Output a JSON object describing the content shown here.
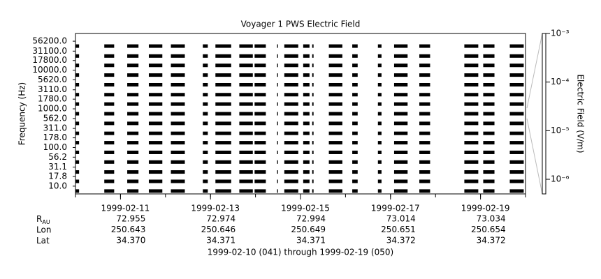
{
  "chart_data": {
    "type": "spectrogram",
    "title": "Voyager 1 PWS Electric Field",
    "ylabel": "Frequency (Hz)",
    "y2label": "Electric Field (V/m)",
    "log": true,
    "ylim": [
      6.3,
      89000
    ],
    "yticks": [
      {
        "value": 56200,
        "label": "56200.0"
      },
      {
        "value": 31100,
        "label": "31100.0"
      },
      {
        "value": 17800,
        "label": "17800.0"
      },
      {
        "value": 10000,
        "label": "10000.0"
      },
      {
        "value": 5620,
        "label": "5620.0"
      },
      {
        "value": 3110,
        "label": "3110.0"
      },
      {
        "value": 1780,
        "label": "1780.0"
      },
      {
        "value": 1000,
        "label": "1000.0"
      },
      {
        "value": 562,
        "label": "562.0"
      },
      {
        "value": 311,
        "label": "311.0"
      },
      {
        "value": 178,
        "label": "178.0"
      },
      {
        "value": 100,
        "label": "100.0"
      },
      {
        "value": 56.2,
        "label": "56.2"
      },
      {
        "value": 31.1,
        "label": "31.1"
      },
      {
        "value": 17.8,
        "label": "17.8"
      },
      {
        "value": 10,
        "label": "10.0"
      }
    ],
    "y2lim": [
      5e-07,
      0.001
    ],
    "y2ticks": [
      {
        "value": 0.001,
        "label": "10⁻³"
      },
      {
        "value": 0.0001,
        "label": "10⁻⁴"
      },
      {
        "value": 1e-05,
        "label": "10⁻⁵"
      },
      {
        "value": 1e-06,
        "label": "10⁻⁶"
      }
    ],
    "xlim": [
      "1999-02-10",
      "1999-02-20"
    ],
    "xticks": [
      "1999-02-11",
      "1999-02-13",
      "1999-02-15",
      "1999-02-17",
      "1999-02-19"
    ],
    "color": "#000000",
    "segments": [
      {
        "start": "1999-02-10T00:00",
        "end": "1999-02-10T01:55"
      },
      {
        "start": "1999-02-10T15:22",
        "end": "1999-02-10T20:38"
      },
      {
        "start": "1999-02-11T03:36",
        "end": "1999-02-11T09:36"
      },
      {
        "start": "1999-02-11T15:07",
        "end": "1999-02-11T22:19"
      },
      {
        "start": "1999-02-12T02:53",
        "end": "1999-02-12T10:19"
      },
      {
        "start": "1999-02-12T19:55",
        "end": "1999-02-12T22:34"
      },
      {
        "start": "1999-02-13T02:38",
        "end": "1999-02-13T11:02"
      },
      {
        "start": "1999-02-13T15:22",
        "end": "1999-02-13T22:34"
      },
      {
        "start": "1999-02-13T23:31",
        "end": "1999-02-14T05:31"
      },
      {
        "start": "1999-02-14T11:31",
        "end": "1999-02-14T12:00"
      },
      {
        "start": "1999-02-14T15:22",
        "end": "1999-02-14T22:48"
      },
      {
        "start": "1999-02-15T01:26",
        "end": "1999-02-15T04:48"
      },
      {
        "start": "1999-02-15T06:14",
        "end": "1999-02-15T06:58"
      },
      {
        "start": "1999-02-15T15:07",
        "end": "1999-02-15T22:19"
      },
      {
        "start": "1999-02-16T03:36",
        "end": "1999-02-16T06:29"
      },
      {
        "start": "1999-02-16T17:17",
        "end": "1999-02-16T19:12"
      },
      {
        "start": "1999-02-17T01:55",
        "end": "1999-02-17T09:07"
      },
      {
        "start": "1999-02-17T15:22",
        "end": "1999-02-17T21:07"
      },
      {
        "start": "1999-02-18T15:22",
        "end": "1999-02-18T22:48"
      },
      {
        "start": "1999-02-19T01:26",
        "end": "1999-02-19T07:26"
      },
      {
        "start": "1999-02-19T15:36",
        "end": "1999-02-19T23:02"
      }
    ],
    "ephemeris": [
      {
        "label": "R",
        "sub": "AU",
        "values": [
          "72.955",
          "72.974",
          "72.994",
          "73.014",
          "73.034"
        ]
      },
      {
        "label": "Lon",
        "values": [
          "250.643",
          "250.646",
          "250.649",
          "250.651",
          "250.654"
        ]
      },
      {
        "label": "Lat",
        "values": [
          "34.370",
          "34.371",
          "34.371",
          "34.372",
          "34.372"
        ]
      }
    ],
    "footer": "1999-02-10 (041) through 1999-02-19 (050)"
  }
}
